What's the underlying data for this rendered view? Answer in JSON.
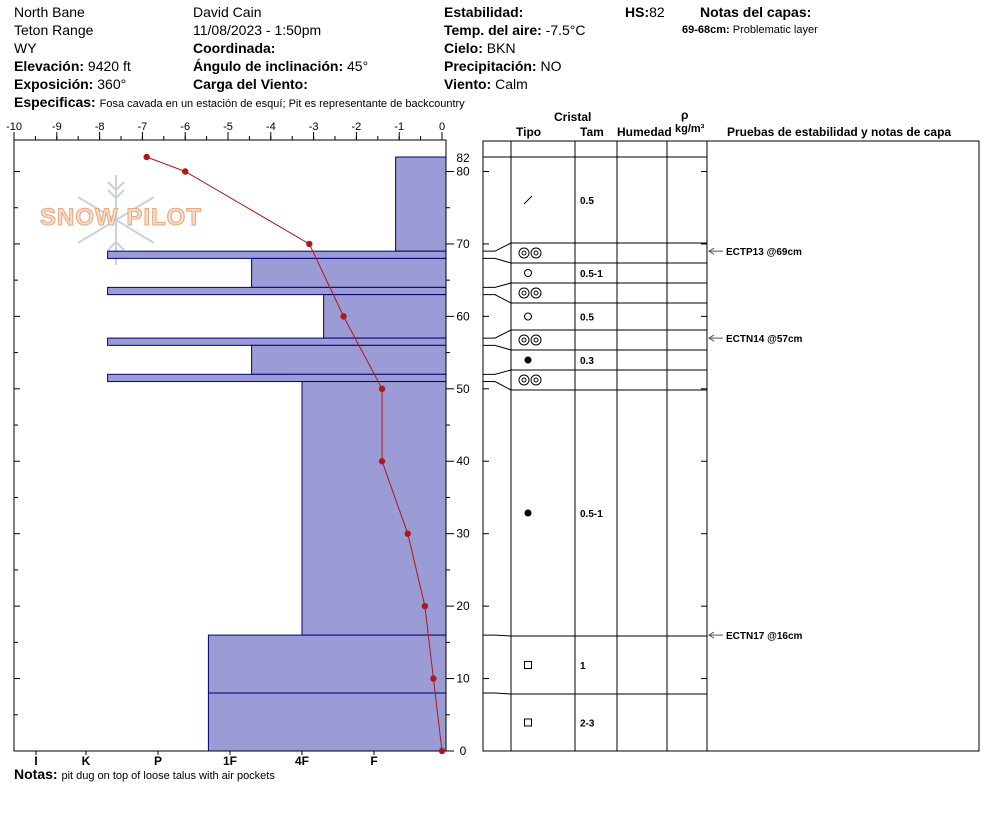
{
  "header": {
    "location": "North Bane",
    "range": "Teton Range",
    "state": "WY",
    "elevation_label": "Elevación:",
    "elevation_value": "9420 ft",
    "aspect_label": "Exposición:",
    "aspect_value": "360°",
    "specifics_label": "Especificas:",
    "specifics_value": "Fosa cavada en un estación de esquí; Pit es representante de backcountry",
    "observer": "David Cain",
    "datetime": "11/08/2023 - 1:50pm",
    "coord_label": "Coordinada:",
    "slope_label": "Ángulo de inclinación:",
    "slope_value": "45°",
    "wind_load_label": "Carga del Viento:",
    "stability_label": "Estabilidad:",
    "air_temp_label": "Temp. del aire:",
    "air_temp_value": "-7.5°C",
    "sky_label": "Cielo:",
    "sky_value": "BKN",
    "precip_label": "Precipitación:",
    "precip_value": "NO",
    "wind_label": "Viento:",
    "wind_value": "Calm",
    "hs_label": "HS:",
    "hs_value": "82",
    "layer_notes_label": "Notas del capas:",
    "layer_note_range": "69-68cm:",
    "layer_note_text": "Problematic layer"
  },
  "footer": {
    "notes_label": "Notas:",
    "notes_value": "pit dug on top of loose talus with air pockets"
  },
  "watermark": "SNOW PILOT",
  "table_headers": {
    "crystal": "Cristal",
    "type": "Tipo",
    "size": "Tam",
    "moisture": "Humedad",
    "rho": "ρ",
    "density_unit": "kg/m³",
    "tests": "Pruebas de estabilidad y notas de capa"
  },
  "chart_data": {
    "type": "snow_profile",
    "temp_axis": {
      "min": -10,
      "max": 0,
      "ticks": [
        -10,
        -9,
        -8,
        -7,
        -6,
        -5,
        -4,
        -3,
        -2,
        -1,
        0
      ]
    },
    "height_axis": {
      "min": 0,
      "max": 82,
      "ticks": [
        0,
        10,
        20,
        30,
        40,
        50,
        60,
        70,
        80
      ],
      "top_label": "82"
    },
    "hardness_scale": [
      "I",
      "K",
      "P",
      "1F",
      "4F",
      "F"
    ],
    "temperature_profile": [
      {
        "height": 82,
        "temp": -6.9
      },
      {
        "height": 80,
        "temp": -6.0
      },
      {
        "height": 70,
        "temp": -3.1
      },
      {
        "height": 60,
        "temp": -2.3
      },
      {
        "height": 50,
        "temp": -1.4
      },
      {
        "height": 40,
        "temp": -1.4
      },
      {
        "height": 30,
        "temp": -0.8
      },
      {
        "height": 20,
        "temp": -0.4
      },
      {
        "height": 10,
        "temp": -0.2
      },
      {
        "height": 0,
        "temp": 0.0
      }
    ],
    "hardness_layers": [
      {
        "top": 82,
        "bottom": 69,
        "hardness": 0.7
      },
      {
        "top": 69,
        "bottom": 68,
        "hardness": 4.7
      },
      {
        "top": 68,
        "bottom": 64,
        "hardness": 2.7
      },
      {
        "top": 64,
        "bottom": 63,
        "hardness": 4.7
      },
      {
        "top": 63,
        "bottom": 57,
        "hardness": 1.7
      },
      {
        "top": 57,
        "bottom": 56,
        "hardness": 4.7
      },
      {
        "top": 56,
        "bottom": 52,
        "hardness": 2.7
      },
      {
        "top": 52,
        "bottom": 51,
        "hardness": 4.7
      },
      {
        "top": 51,
        "bottom": 16,
        "hardness": 2.0
      },
      {
        "top": 16,
        "bottom": 8,
        "hardness": 3.3
      },
      {
        "top": 8,
        "bottom": 0,
        "hardness": 3.3
      }
    ],
    "layers": [
      {
        "top": 82,
        "bottom": 69,
        "type": "slash",
        "size": "0.5"
      },
      {
        "top": 69,
        "bottom": 68,
        "type": "double-ring",
        "size": ""
      },
      {
        "top": 68,
        "bottom": 64,
        "type": "open-circle",
        "size": "0.5-1"
      },
      {
        "top": 64,
        "bottom": 63,
        "type": "double-ring",
        "size": ""
      },
      {
        "top": 63,
        "bottom": 57,
        "type": "open-circle",
        "size": "0.5"
      },
      {
        "top": 57,
        "bottom": 56,
        "type": "double-ring",
        "size": ""
      },
      {
        "top": 56,
        "bottom": 52,
        "type": "filled-circle",
        "size": "0.3"
      },
      {
        "top": 52,
        "bottom": 51,
        "type": "double-ring",
        "size": ""
      },
      {
        "top": 51,
        "bottom": 16,
        "type": "filled-circle",
        "size": "0.5-1"
      },
      {
        "top": 16,
        "bottom": 8,
        "type": "open-square",
        "size": "1"
      },
      {
        "top": 8,
        "bottom": 0,
        "type": "open-square",
        "size": "2-3"
      }
    ],
    "stability_tests": [
      {
        "height": 69,
        "label": "ECTP13 @69cm"
      },
      {
        "height": 57,
        "label": "ECTN14 @57cm"
      },
      {
        "height": 16,
        "label": "ECTN17 @16cm"
      }
    ],
    "colors": {
      "hardness_fill": "#9b9bd6",
      "hardness_stroke": "#00007a",
      "temperature": "#b01818"
    }
  }
}
